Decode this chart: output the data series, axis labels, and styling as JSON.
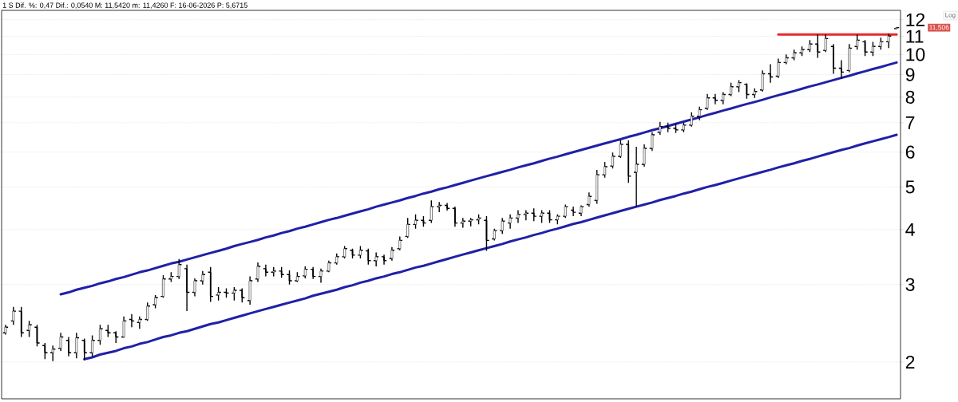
{
  "chart_data": {
    "type": "candlestick",
    "title": "1 S Dif. %: 0,47 Dif.: 0,0540 M: 11,5420 m: 11,4260 F: 16-06-2026 P: 5,6715",
    "categories": [
      null,
      null,
      null,
      null,
      null,
      null,
      null,
      null,
      null,
      null,
      null,
      null,
      null,
      null,
      null,
      null,
      null,
      null,
      null,
      null,
      null,
      null,
      null,
      null,
      null,
      null,
      null,
      null,
      null,
      null,
      null,
      null,
      null,
      null,
      null,
      null,
      null,
      null,
      null,
      null,
      null,
      null,
      null,
      null,
      null,
      null,
      null,
      null,
      null,
      null,
      null,
      null,
      null,
      null,
      null,
      null,
      null,
      null,
      null,
      null,
      null,
      null,
      null,
      null,
      null,
      null,
      null,
      null,
      null,
      null,
      null,
      null,
      null,
      null,
      null,
      null,
      null,
      null,
      null,
      null,
      null,
      null,
      null,
      null,
      null,
      null,
      null,
      null,
      null,
      null,
      null,
      null,
      null,
      null,
      null,
      null,
      null,
      null,
      null,
      null,
      null,
      null,
      null,
      null,
      null,
      null,
      null,
      null,
      null,
      null,
      null,
      null,
      null,
      null
    ],
    "series": [
      {
        "type": "line",
        "color": "#2020a8",
        "values": [
          null,
          null,
          null,
          null,
          null,
          null,
          null,
          2.85,
          2.88,
          2.92,
          2.95,
          2.98,
          3.02,
          3.05,
          3.09,
          3.12,
          3.16,
          3.2,
          3.23,
          3.27,
          3.31,
          3.35,
          3.38,
          3.42,
          3.46,
          3.5,
          3.54,
          3.58,
          3.62,
          3.67,
          3.71,
          3.75,
          3.79,
          3.84,
          3.88,
          3.93,
          3.97,
          4.02,
          4.06,
          4.11,
          4.16,
          4.21,
          4.25,
          4.3,
          4.35,
          4.4,
          4.45,
          4.51,
          4.56,
          4.61,
          4.66,
          4.72,
          4.77,
          4.83,
          4.88,
          4.94,
          4.99,
          5.05,
          5.11,
          5.17,
          5.23,
          5.29,
          5.35,
          5.41,
          5.47,
          5.54,
          5.6,
          5.66,
          5.73,
          5.8,
          5.86,
          5.93,
          6.0,
          6.07,
          6.14,
          6.21,
          6.28,
          6.35,
          6.42,
          6.5,
          6.57,
          6.65,
          6.73,
          6.8,
          6.88,
          6.96,
          7.04,
          7.12,
          7.2,
          7.29,
          7.37,
          7.46,
          7.54,
          7.63,
          7.72,
          7.8,
          7.89,
          7.99,
          8.08,
          8.17,
          8.26,
          8.36,
          8.46,
          8.55,
          8.65,
          8.75,
          8.85,
          8.95,
          9.06,
          9.16,
          9.27,
          9.37,
          9.48,
          9.59
        ]
      },
      {
        "type": "line",
        "color": "#2020a8",
        "values": [
          null,
          null,
          null,
          null,
          null,
          null,
          null,
          null,
          null,
          null,
          2.03,
          2.05,
          2.08,
          2.1,
          2.12,
          2.15,
          2.17,
          2.2,
          2.22,
          2.25,
          2.28,
          2.3,
          2.33,
          2.35,
          2.38,
          2.41,
          2.44,
          2.46,
          2.49,
          2.52,
          2.55,
          2.58,
          2.61,
          2.64,
          2.67,
          2.7,
          2.73,
          2.76,
          2.79,
          2.83,
          2.86,
          2.89,
          2.92,
          2.96,
          2.99,
          3.03,
          3.06,
          3.1,
          3.13,
          3.17,
          3.2,
          3.24,
          3.28,
          3.31,
          3.35,
          3.39,
          3.43,
          3.47,
          3.51,
          3.55,
          3.59,
          3.63,
          3.67,
          3.71,
          3.76,
          3.8,
          3.84,
          3.89,
          3.93,
          3.98,
          4.02,
          4.07,
          4.12,
          4.16,
          4.21,
          4.26,
          4.31,
          4.36,
          4.41,
          4.46,
          4.51,
          4.56,
          4.61,
          4.67,
          4.72,
          4.77,
          4.83,
          4.88,
          4.94,
          5.0,
          5.05,
          5.11,
          5.17,
          5.23,
          5.29,
          5.35,
          5.41,
          5.47,
          5.54,
          5.6,
          5.66,
          5.73,
          5.79,
          5.86,
          5.93,
          6.0,
          6.07,
          6.13,
          6.21,
          6.28,
          6.35,
          6.42,
          6.49,
          6.57
        ]
      },
      {
        "type": "line",
        "color": "#e8292b",
        "values": [
          null,
          null,
          null,
          null,
          null,
          null,
          null,
          null,
          null,
          null,
          null,
          null,
          null,
          null,
          null,
          null,
          null,
          null,
          null,
          null,
          null,
          null,
          null,
          null,
          null,
          null,
          null,
          null,
          null,
          null,
          null,
          null,
          null,
          null,
          null,
          null,
          null,
          null,
          null,
          null,
          null,
          null,
          null,
          null,
          null,
          null,
          null,
          null,
          null,
          null,
          null,
          null,
          null,
          null,
          null,
          null,
          null,
          null,
          null,
          null,
          null,
          null,
          null,
          null,
          null,
          null,
          null,
          null,
          null,
          null,
          null,
          null,
          null,
          null,
          null,
          null,
          null,
          null,
          null,
          null,
          null,
          null,
          null,
          null,
          null,
          null,
          null,
          null,
          null,
          null,
          null,
          null,
          null,
          null,
          null,
          null,
          null,
          null,
          11.1,
          11.1,
          11.1,
          11.1,
          11.1,
          11.1,
          11.1,
          11.1,
          11.1,
          11.1,
          11.1,
          11.1,
          11.1,
          11.1,
          11.1,
          11.1
        ]
      },
      {
        "color": "#000000",
        "ohlc": [
          [
            2.33,
            2.43,
            2.31,
            2.4
          ],
          [
            2.48,
            2.67,
            2.43,
            2.61
          ],
          [
            2.61,
            2.67,
            2.28,
            2.33
          ],
          [
            2.36,
            2.48,
            2.28,
            2.43
          ],
          [
            2.4,
            2.43,
            2.17,
            2.21
          ],
          [
            2.18,
            2.21,
            2.03,
            2.1
          ],
          [
            2.1,
            2.18,
            2.01,
            2.14
          ],
          [
            2.15,
            2.33,
            2.12,
            2.28
          ],
          [
            2.24,
            2.28,
            2.06,
            2.1
          ],
          [
            2.1,
            2.33,
            2.04,
            2.27
          ],
          [
            2.24,
            2.26,
            2.02,
            2.1
          ],
          [
            2.1,
            2.3,
            2.06,
            2.24
          ],
          [
            2.24,
            2.43,
            2.19,
            2.38
          ],
          [
            2.36,
            2.43,
            2.28,
            2.33
          ],
          [
            2.33,
            2.35,
            2.21,
            2.28
          ],
          [
            2.28,
            2.54,
            2.27,
            2.48
          ],
          [
            2.5,
            2.57,
            2.4,
            2.48
          ],
          [
            2.46,
            2.54,
            2.38,
            2.5
          ],
          [
            2.5,
            2.73,
            2.48,
            2.68
          ],
          [
            2.7,
            2.84,
            2.65,
            2.8
          ],
          [
            2.82,
            3.15,
            2.8,
            3.09
          ],
          [
            3.09,
            3.2,
            3.04,
            3.13
          ],
          [
            3.13,
            3.43,
            3.09,
            3.33
          ],
          [
            3.26,
            3.33,
            2.61,
            2.88
          ],
          [
            2.88,
            3.1,
            2.82,
            3.06
          ],
          [
            3.06,
            3.22,
            3.0,
            3.16
          ],
          [
            3.2,
            3.29,
            2.74,
            2.82
          ],
          [
            2.84,
            2.96,
            2.76,
            2.88
          ],
          [
            2.88,
            2.94,
            2.8,
            2.87
          ],
          [
            2.87,
            2.96,
            2.76,
            2.91
          ],
          [
            2.91,
            2.94,
            2.73,
            2.8
          ],
          [
            2.76,
            3.13,
            2.7,
            3.06
          ],
          [
            3.09,
            3.37,
            3.04,
            3.3
          ],
          [
            3.26,
            3.33,
            3.13,
            3.2
          ],
          [
            3.2,
            3.29,
            3.13,
            3.22
          ],
          [
            3.22,
            3.29,
            3.11,
            3.16
          ],
          [
            3.16,
            3.23,
            3.0,
            3.06
          ],
          [
            3.06,
            3.2,
            3.04,
            3.13
          ],
          [
            3.14,
            3.3,
            3.1,
            3.25
          ],
          [
            3.25,
            3.29,
            3.09,
            3.13
          ],
          [
            3.13,
            3.26,
            3.03,
            3.22
          ],
          [
            3.22,
            3.4,
            3.2,
            3.36
          ],
          [
            3.36,
            3.53,
            3.33,
            3.47
          ],
          [
            3.47,
            3.67,
            3.44,
            3.62
          ],
          [
            3.59,
            3.62,
            3.44,
            3.5
          ],
          [
            3.5,
            3.67,
            3.44,
            3.59
          ],
          [
            3.58,
            3.62,
            3.33,
            3.4
          ],
          [
            3.4,
            3.55,
            3.3,
            3.47
          ],
          [
            3.47,
            3.51,
            3.33,
            3.4
          ],
          [
            3.44,
            3.65,
            3.4,
            3.59
          ],
          [
            3.62,
            3.86,
            3.59,
            3.78
          ],
          [
            3.86,
            4.25,
            3.83,
            4.11
          ],
          [
            4.11,
            4.33,
            4.02,
            4.2
          ],
          [
            4.2,
            4.29,
            4.06,
            4.14
          ],
          [
            4.2,
            4.66,
            4.14,
            4.51
          ],
          [
            4.51,
            4.62,
            4.38,
            4.54
          ],
          [
            4.54,
            4.6,
            4.42,
            4.47
          ],
          [
            4.47,
            4.51,
            4.06,
            4.14
          ],
          [
            4.14,
            4.25,
            4.04,
            4.18
          ],
          [
            4.18,
            4.25,
            4.07,
            4.21
          ],
          [
            4.21,
            4.33,
            4.11,
            4.25
          ],
          [
            4.2,
            4.29,
            3.58,
            3.78
          ],
          [
            3.81,
            4.02,
            3.78,
            3.98
          ],
          [
            3.98,
            4.25,
            3.91,
            4.18
          ],
          [
            4.14,
            4.33,
            4.02,
            4.25
          ],
          [
            4.25,
            4.43,
            4.14,
            4.33
          ],
          [
            4.33,
            4.43,
            4.2,
            4.36
          ],
          [
            4.36,
            4.47,
            4.18,
            4.29
          ],
          [
            4.29,
            4.43,
            4.14,
            4.36
          ],
          [
            4.36,
            4.43,
            4.14,
            4.21
          ],
          [
            4.21,
            4.33,
            4.11,
            4.29
          ],
          [
            4.29,
            4.56,
            4.25,
            4.51
          ],
          [
            4.43,
            4.51,
            4.29,
            4.38
          ],
          [
            4.36,
            4.54,
            4.29,
            4.51
          ],
          [
            4.56,
            4.86,
            4.51,
            4.76
          ],
          [
            4.66,
            5.47,
            4.58,
            5.33
          ],
          [
            5.33,
            5.7,
            5.25,
            5.56
          ],
          [
            5.58,
            5.99,
            5.51,
            5.87
          ],
          [
            5.87,
            6.38,
            5.82,
            6.25
          ],
          [
            6.25,
            6.38,
            5.11,
            5.29
          ],
          [
            5.4,
            6.17,
            4.51,
            5.63
          ],
          [
            5.63,
            6.25,
            5.56,
            6.12
          ],
          [
            6.12,
            6.66,
            6.04,
            6.57
          ],
          [
            6.66,
            7.03,
            6.57,
            6.86
          ],
          [
            6.86,
            7.0,
            6.66,
            6.8
          ],
          [
            6.8,
            6.97,
            6.63,
            6.74
          ],
          [
            6.74,
            7.0,
            6.66,
            6.91
          ],
          [
            6.91,
            7.39,
            6.86,
            7.24
          ],
          [
            7.24,
            7.61,
            7.09,
            7.49
          ],
          [
            7.55,
            8.14,
            7.49,
            7.97
          ],
          [
            7.97,
            8.14,
            7.71,
            7.87
          ],
          [
            7.87,
            8.21,
            7.71,
            8.11
          ],
          [
            8.11,
            8.63,
            8.04,
            8.45
          ],
          [
            8.45,
            8.74,
            8.21,
            8.63
          ],
          [
            8.56,
            8.6,
            7.94,
            8.11
          ],
          [
            8.11,
            8.38,
            7.97,
            8.24
          ],
          [
            8.31,
            9.2,
            8.24,
            9.04
          ],
          [
            9.04,
            9.51,
            8.63,
            8.89
          ],
          [
            8.93,
            9.79,
            8.85,
            9.59
          ],
          [
            9.59,
            10.0,
            9.51,
            9.83
          ],
          [
            9.83,
            10.26,
            9.71,
            10.09
          ],
          [
            10.09,
            10.43,
            9.92,
            10.26
          ],
          [
            10.26,
            10.78,
            10.13,
            10.56
          ],
          [
            10.56,
            11.1,
            9.83,
            10.13
          ],
          [
            10.22,
            11.1,
            10.13,
            10.87
          ],
          [
            10.43,
            10.56,
            9.04,
            9.31
          ],
          [
            9.31,
            9.71,
            8.81,
            9.12
          ],
          [
            9.2,
            10.56,
            9.12,
            10.34
          ],
          [
            10.43,
            11.1,
            10.26,
            10.78
          ],
          [
            10.69,
            10.78,
            9.92,
            10.13
          ],
          [
            10.13,
            10.69,
            9.92,
            10.43
          ],
          [
            10.43,
            10.92,
            10.26,
            10.69
          ],
          [
            10.69,
            11.15,
            10.34,
            11.01
          ],
          [
            11.45,
            11.54,
            11.43,
            11.51
          ]
        ]
      }
    ],
    "annotations": [
      "11,506",
      "Log"
    ],
    "ylim": [
      1.65,
      12.6
    ],
    "yticks": [
      2,
      3,
      4,
      5,
      6,
      7,
      8,
      9,
      10,
      11,
      12
    ],
    "log": true,
    "grid": "y"
  }
}
